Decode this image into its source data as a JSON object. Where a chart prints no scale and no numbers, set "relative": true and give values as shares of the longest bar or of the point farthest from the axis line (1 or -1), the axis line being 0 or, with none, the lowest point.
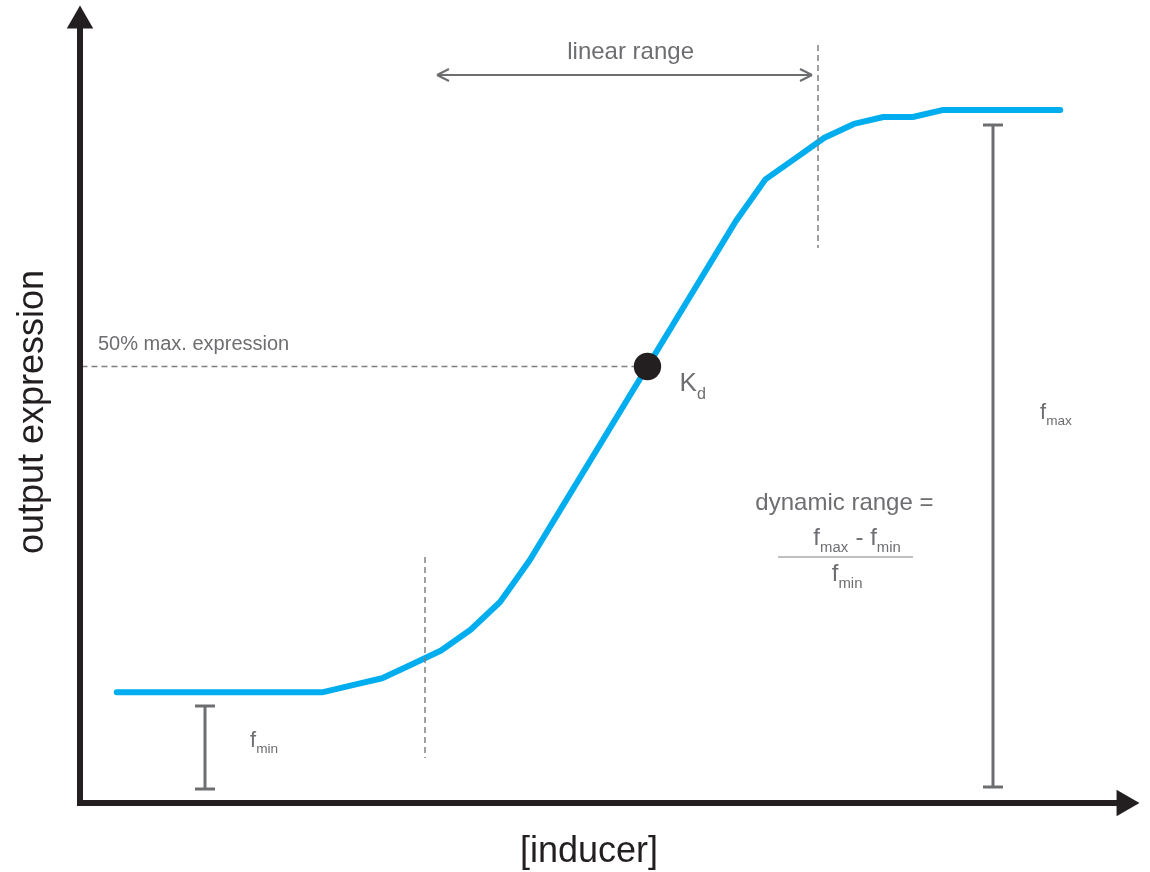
{
  "chart_data": {
    "type": "line",
    "relative": true,
    "xlabel": "[inducer]",
    "ylabel": "output expression",
    "tick_labels": false,
    "grid": false,
    "categories": [
      null,
      null,
      null,
      null,
      null,
      null,
      null,
      null,
      null,
      null,
      null,
      null,
      null,
      null,
      null,
      null,
      null,
      null,
      null,
      null,
      null,
      null,
      null,
      null,
      null,
      null,
      null,
      null,
      null,
      null,
      null,
      null,
      null
    ],
    "series": [
      {
        "color": "#00aeef",
        "values": [
          0.16,
          0.16,
          0.16,
          0.16,
          0.16,
          0.16,
          0.16,
          0.16,
          0.17,
          0.18,
          0.2,
          0.22,
          0.25,
          0.29,
          0.35,
          0.42,
          0.49,
          0.56,
          0.63,
          0.7,
          0.77,
          0.84,
          0.9,
          0.93,
          0.96,
          0.98,
          0.99,
          0.99,
          1.0,
          1.0,
          1.0,
          1.0,
          1.0
        ]
      }
    ],
    "ref_lines": [
      {
        "axis": "y",
        "value": 0.63,
        "label": "50% max. expression",
        "color": "#808080",
        "line_style": "dashed"
      }
    ],
    "annotations": [
      "K$_{d}$",
      "linear range",
      "f$_{min}$",
      "f$_{max}$",
      "dynamic range =",
      "f$_{max}$ - f$_{min}$",
      "f$_{min}$"
    ]
  }
}
